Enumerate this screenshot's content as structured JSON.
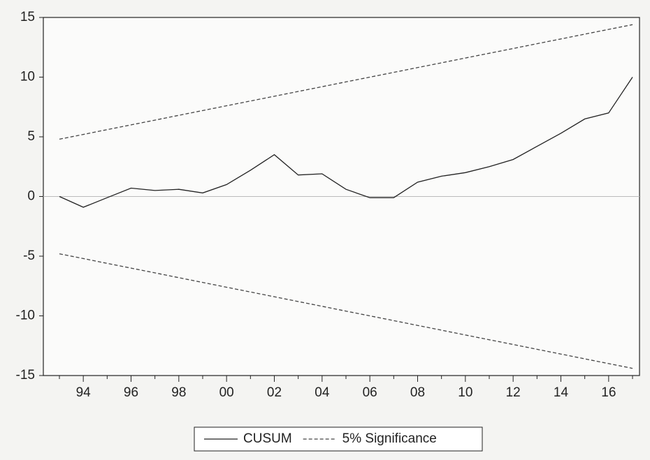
{
  "chart_data": {
    "type": "line",
    "categories": [
      null,
      "94",
      null,
      "96",
      null,
      "98",
      null,
      "00",
      null,
      "02",
      null,
      "04",
      null,
      "06",
      null,
      "08",
      null,
      "10",
      null,
      "12",
      null,
      "14",
      null,
      "16",
      null
    ],
    "series": [
      {
        "name": "CUSUM",
        "color": "#222222",
        "dash": false,
        "values": [
          0,
          -0.9,
          -0.1,
          0.7,
          0.5,
          0.6,
          0.3,
          1.0,
          2.2,
          3.5,
          1.8,
          1.9,
          0.6,
          -0.1,
          -0.1,
          1.2,
          1.7,
          2.0,
          2.5,
          3.1,
          4.2,
          5.3,
          6.5,
          7.0,
          10.0
        ]
      },
      {
        "name": "5% Significance",
        "color": "#444444",
        "dash": true,
        "values": [
          4.8,
          5.2,
          5.6,
          6.0,
          6.4,
          6.8,
          7.2,
          7.6,
          8.0,
          8.4,
          8.8,
          9.2,
          9.6,
          10.0,
          10.4,
          10.8,
          11.2,
          11.6,
          12.0,
          12.4,
          12.8,
          13.2,
          13.6,
          14.0,
          14.4
        ]
      },
      {
        "color": "#444444",
        "dash": true,
        "values": [
          -4.8,
          -5.2,
          -5.6,
          -6.0,
          -6.4,
          -6.8,
          -7.2,
          -7.6,
          -8.0,
          -8.4,
          -8.8,
          -9.2,
          -9.6,
          -10.0,
          -10.4,
          -10.8,
          -11.2,
          -11.6,
          -12.0,
          -12.4,
          -12.8,
          -13.2,
          -13.6,
          -14.0,
          -14.4
        ]
      }
    ],
    "ylim": [
      -15,
      15
    ],
    "yticks": [
      -15,
      -10,
      -5,
      0,
      5,
      10,
      15
    ],
    "zero_line": true,
    "legend": "bottom"
  }
}
